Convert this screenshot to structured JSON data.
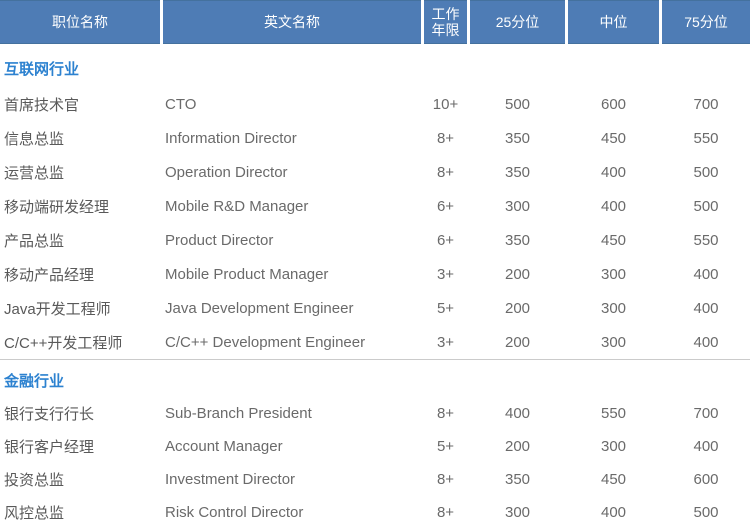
{
  "chart_data": {
    "type": "table",
    "columns": [
      "职位名称",
      "英文名称",
      "工作年限",
      "25分位",
      "中位",
      "75分位"
    ],
    "sections": [
      {
        "title": "互联网行业",
        "rows": [
          {
            "cn": "首席技术官",
            "en": "CTO",
            "years": "10+",
            "p25": "500",
            "p50": "600",
            "p75": "700"
          },
          {
            "cn": "信息总监",
            "en": "Information Director",
            "years": "8+",
            "p25": "350",
            "p50": "450",
            "p75": "550"
          },
          {
            "cn": "运营总监",
            "en": "Operation Director",
            "years": "8+",
            "p25": "350",
            "p50": "400",
            "p75": "500"
          },
          {
            "cn": "移动端研发经理",
            "en": "Mobile R&D Manager",
            "years": "6+",
            "p25": "300",
            "p50": "400",
            "p75": "500"
          },
          {
            "cn": "产品总监",
            "en": "Product Director",
            "years": "6+",
            "p25": "350",
            "p50": "450",
            "p75": "550"
          },
          {
            "cn": "移动产品经理",
            "en": "Mobile Product Manager",
            "years": "3+",
            "p25": "200",
            "p50": "300",
            "p75": "400"
          },
          {
            "cn": "Java开发工程师",
            "en": "Java Development Engineer",
            "years": "5+",
            "p25": "200",
            "p50": "300",
            "p75": "400"
          },
          {
            "cn": "C/C++开发工程师",
            "en": "C/C++ Development Engineer",
            "years": "3+",
            "p25": "200",
            "p50": "300",
            "p75": "400"
          }
        ]
      },
      {
        "title": "金融行业",
        "rows": [
          {
            "cn": "银行支行行长",
            "en": "Sub-Branch President",
            "years": "8+",
            "p25": "400",
            "p50": "550",
            "p75": "700"
          },
          {
            "cn": "银行客户经理",
            "en": "Account Manager",
            "years": "5+",
            "p25": "200",
            "p50": "300",
            "p75": "400"
          },
          {
            "cn": "投资总监",
            "en": "Investment Director",
            "years": "8+",
            "p25": "350",
            "p50": "450",
            "p75": "600"
          },
          {
            "cn": "风控总监",
            "en": "Risk Control Director",
            "years": "8+",
            "p25": "300",
            "p50": "400",
            "p75": "500"
          }
        ]
      }
    ],
    "layout": {
      "header_bg": "#4e7cb5",
      "section_title_color": "#2d82d0",
      "divider_color": "#cbcbcb"
    }
  }
}
